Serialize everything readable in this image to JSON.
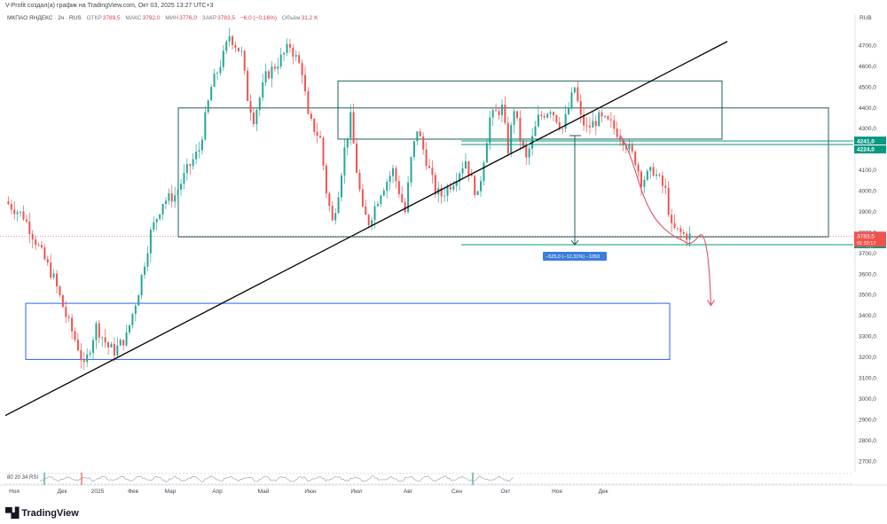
{
  "header": {
    "attribution": "V-Profit создал(а) график на TradingView.com, Окт 03, 2025 13:27 UTC+3",
    "symbol": "МКПАО ЯНДЕКС · 2ч · RUS",
    "open_label": "ОТКР",
    "open_value": "3789,5",
    "high_label": "МАКС",
    "high_value": "3792,0",
    "low_label": "МИН",
    "low_value": "3776,0",
    "close_label": "ЗАКР",
    "close_value": "3783,5",
    "change": "−6,0 (−0,16%)",
    "volume_label": "Объём",
    "volume_value": "31,2 K",
    "currency": "RUB"
  },
  "indicator_label": "80 20 34 RSI",
  "brand": "TradingView",
  "colors": {
    "up": "#26a69a",
    "down": "#ef5350",
    "box_teal": "#1e5f5f",
    "box_blue": "#2962ff",
    "trendline": "#000000",
    "forecast": "#e0506a",
    "price_tag": "#ef5350",
    "level_tag": "#089981"
  },
  "chart_data": {
    "type": "candlestick",
    "x_ticks": [
      "Ноя",
      "Дек",
      "2025",
      "Фев",
      "Мар",
      "Апр",
      "Май",
      "Июн",
      "Июл",
      "Авг",
      "Сен",
      "Окт",
      "Ноя",
      "Дек"
    ],
    "y_ticks": [
      "4700,0",
      "4600,0",
      "4500,0",
      "4400,0",
      "4300,0",
      "4200,0",
      "4100,0",
      "4000,0",
      "3900,0",
      "3800,0",
      "3700,0",
      "3600,0",
      "3500,0",
      "3400,0",
      "3300,0",
      "3200,0",
      "3100,0",
      "3000,0",
      "2900,0",
      "2800,0",
      "2700,0"
    ],
    "ylim": [
      2650,
      4800
    ],
    "price_path": [
      [
        0,
        3950
      ],
      [
        3,
        3880
      ],
      [
        6,
        3700
      ],
      [
        8,
        3580
      ],
      [
        10,
        3400
      ],
      [
        12,
        3250
      ],
      [
        13,
        3150
      ],
      [
        15,
        3350
      ],
      [
        17,
        3250
      ],
      [
        18,
        3230
      ],
      [
        20,
        3300
      ],
      [
        22,
        3520
      ],
      [
        24,
        3800
      ],
      [
        26,
        3950
      ],
      [
        28,
        3980
      ],
      [
        30,
        4100
      ],
      [
        32,
        4200
      ],
      [
        34,
        4500
      ],
      [
        36,
        4650
      ],
      [
        37,
        4750
      ],
      [
        39,
        4660
      ],
      [
        40,
        4450
      ],
      [
        41,
        4350
      ],
      [
        43,
        4550
      ],
      [
        45,
        4620
      ],
      [
        47,
        4700
      ],
      [
        49,
        4580
      ],
      [
        50,
        4350
      ],
      [
        52,
        4250
      ],
      [
        53,
        4000
      ],
      [
        54,
        3850
      ],
      [
        55,
        4000
      ],
      [
        56,
        4200
      ],
      [
        57,
        4350
      ],
      [
        58,
        4100
      ],
      [
        59,
        3900
      ],
      [
        60,
        3850
      ],
      [
        62,
        4000
      ],
      [
        64,
        4100
      ],
      [
        65,
        4000
      ],
      [
        66,
        3900
      ],
      [
        67,
        4150
      ],
      [
        68,
        4300
      ],
      [
        70,
        4100
      ],
      [
        71,
        4000
      ],
      [
        72,
        3980
      ],
      [
        74,
        4050
      ],
      [
        76,
        4150
      ],
      [
        77,
        4050
      ],
      [
        78,
        3970
      ],
      [
        80,
        4350
      ],
      [
        82,
        4400
      ],
      [
        83,
        4200
      ],
      [
        84,
        4400
      ],
      [
        85,
        4250
      ],
      [
        86,
        4150
      ],
      [
        88,
        4350
      ],
      [
        90,
        4400
      ],
      [
        92,
        4300
      ],
      [
        94,
        4500
      ],
      [
        95,
        4350
      ],
      [
        96,
        4300
      ],
      [
        98,
        4350
      ],
      [
        100,
        4320
      ],
      [
        102,
        4250
      ],
      [
        104,
        4150
      ],
      [
        105,
        4050
      ],
      [
        107,
        4100
      ],
      [
        109,
        4000
      ],
      [
        110,
        3820
      ],
      [
        112,
        3790
      ],
      [
        113,
        3783.5
      ]
    ],
    "current_price": "3783,5",
    "current_time": "01:32:17",
    "levels": [
      {
        "label": "4241,0",
        "value": 4241
      },
      {
        "label": "4224,0",
        "value": 4224
      },
      {
        "label": "3742,0",
        "value": 3742
      }
    ],
    "measure": {
      "from": 4267,
      "to": 3742,
      "label": "−525,0 (−12,31%) −1050"
    },
    "zones": [
      {
        "name": "upper-range",
        "top": 4530,
        "bottom": 4250
      },
      {
        "name": "consolidation",
        "top": 4400,
        "bottom": 3780
      },
      {
        "name": "target-zone",
        "top": 3460,
        "bottom": 3190
      }
    ],
    "trendline": {
      "from": 2920,
      "to": 4720
    },
    "forecast_target": 3450,
    "grid": false,
    "legend_position": "top-left"
  }
}
